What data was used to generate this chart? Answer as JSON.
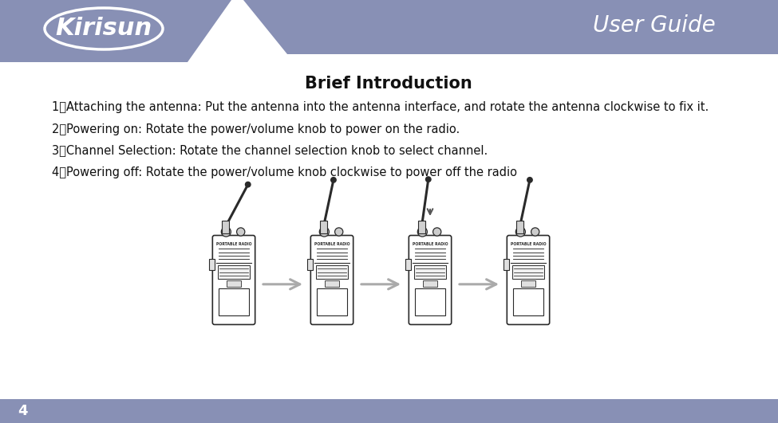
{
  "bg_color": "#ffffff",
  "header_color": "#8890b5",
  "header_text": "User Guide",
  "header_text_color": "#ffffff",
  "logo_text": "Kirisun",
  "logo_color": "#ffffff",
  "title": "Brief Introduction",
  "title_fontsize": 15,
  "title_color": "#111111",
  "footer_color": "#8890b5",
  "footer_number": "4",
  "footer_text_color": "#ffffff",
  "body_color": "#111111",
  "body_fontsize": 10.5,
  "items": [
    "1．Attaching the antenna: Put the antenna into the antenna interface, and rotate the antenna clockwise to fix it.",
    "2．Powering on: Rotate the power/volume knob to power on the radio.",
    "3．Channel Selection: Rotate the channel selection knob to select channel.",
    "4．Powering off: Rotate the power/volume knob clockwise to power off the radio"
  ],
  "arrow_color": "#aaaaaa",
  "radio_outline": "#2a2a2a",
  "fig_width": 9.75,
  "fig_height": 5.31,
  "dpi": 100
}
